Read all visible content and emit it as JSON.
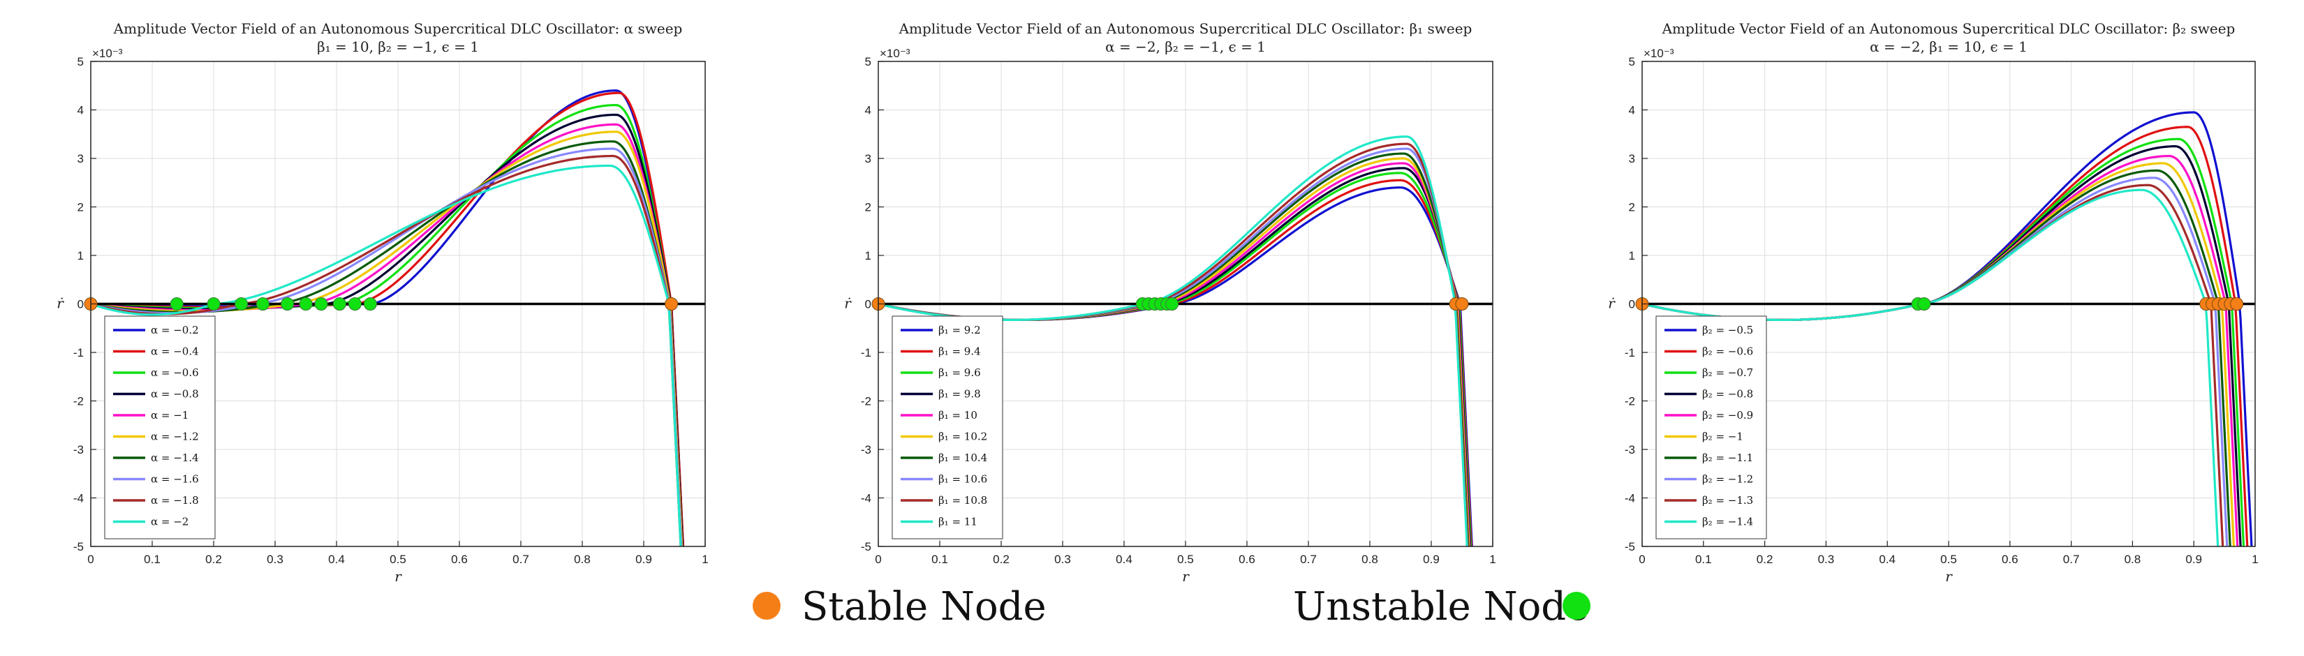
{
  "chart_data": [
    {
      "type": "line",
      "title": "Amplitude Vector Field of an Autonomous Supercritical DLC Oscillator: α sweep",
      "subtitle": "β₁ = 10, β₂ = −1, ϵ = 1",
      "xlabel": "r",
      "ylabel": "ṙ",
      "y_exponent_label": "×10⁻³",
      "xlim": [
        0,
        1
      ],
      "ylim": [
        -5,
        5
      ],
      "xticks": [
        0,
        0.1,
        0.2,
        0.3,
        0.4,
        0.5,
        0.6,
        0.7,
        0.8,
        0.9,
        1
      ],
      "yticks": [
        -5,
        -4,
        -3,
        -2,
        -1,
        0,
        1,
        2,
        3,
        4,
        5
      ],
      "grid": true,
      "legend_position": "bottom-left",
      "series": [
        {
          "name": "α = −0.2",
          "color": "#1010d0",
          "neg_dip": 0.05,
          "unstable_r": 0.455,
          "peak_r": 0.855,
          "peak_y": 4.4,
          "stable_r": 0.945
        },
        {
          "name": "α = −0.4",
          "color": "#e01010",
          "neg_dip": 0.07,
          "unstable_r": 0.43,
          "peak_r": 0.86,
          "peak_y": 4.35,
          "stable_r": 0.945
        },
        {
          "name": "α = −0.6",
          "color": "#10e010",
          "neg_dip": 0.09,
          "unstable_r": 0.405,
          "peak_r": 0.855,
          "peak_y": 4.1,
          "stable_r": 0.944
        },
        {
          "name": "α = −0.8",
          "color": "#000033",
          "neg_dip": 0.11,
          "unstable_r": 0.38,
          "peak_r": 0.855,
          "peak_y": 3.9,
          "stable_r": 0.944
        },
        {
          "name": "α = −1",
          "color": "#ff10c8",
          "neg_dip": 0.13,
          "unstable_r": 0.355,
          "peak_r": 0.855,
          "peak_y": 3.7,
          "stable_r": 0.943
        },
        {
          "name": "α = −1.2",
          "color": "#f0c800",
          "neg_dip": 0.15,
          "unstable_r": 0.33,
          "peak_r": 0.855,
          "peak_y": 3.55,
          "stable_r": 0.943
        },
        {
          "name": "α = −1.4",
          "color": "#0a5a0a",
          "neg_dip": 0.17,
          "unstable_r": 0.3,
          "peak_r": 0.85,
          "peak_y": 3.35,
          "stable_r": 0.942
        },
        {
          "name": "α = −1.6",
          "color": "#8888ff",
          "neg_dip": 0.19,
          "unstable_r": 0.265,
          "peak_r": 0.85,
          "peak_y": 3.2,
          "stable_r": 0.942
        },
        {
          "name": "α = −1.8",
          "color": "#a52a2a",
          "neg_dip": 0.21,
          "unstable_r": 0.24,
          "peak_r": 0.85,
          "peak_y": 3.05,
          "stable_r": 0.941
        },
        {
          "name": "α = −2",
          "color": "#20e8c8",
          "neg_dip": 0.22,
          "unstable_r": 0.2,
          "peak_r": 0.845,
          "peak_y": 2.85,
          "stable_r": 0.941
        }
      ],
      "unstable_nodes_r": [
        0.14,
        0.2,
        0.245,
        0.28,
        0.32,
        0.35,
        0.375,
        0.405,
        0.43,
        0.455
      ],
      "stable_nodes_r": [
        0,
        0.945
      ]
    },
    {
      "type": "line",
      "title": "Amplitude Vector Field of an Autonomous Supercritical DLC Oscillator: β₁ sweep",
      "subtitle": "α = −2, β₂ = −1, ϵ = 1",
      "xlabel": "r",
      "ylabel": "ṙ",
      "y_exponent_label": "×10⁻³",
      "xlim": [
        0,
        1
      ],
      "ylim": [
        -5,
        5
      ],
      "xticks": [
        0,
        0.1,
        0.2,
        0.3,
        0.4,
        0.5,
        0.6,
        0.7,
        0.8,
        0.9,
        1
      ],
      "yticks": [
        -5,
        -4,
        -3,
        -2,
        -1,
        0,
        1,
        2,
        3,
        4,
        5
      ],
      "grid": true,
      "legend_position": "bottom-left",
      "series": [
        {
          "name": "β₁ = 9.2",
          "color": "#1010d0",
          "neg_dip": 0.33,
          "unstable_r": 0.478,
          "peak_r": 0.85,
          "peak_y": 2.4,
          "stable_r": 0.947
        },
        {
          "name": "β₁ = 9.4",
          "color": "#e01010",
          "neg_dip": 0.33,
          "unstable_r": 0.472,
          "peak_r": 0.85,
          "peak_y": 2.55,
          "stable_r": 0.946
        },
        {
          "name": "β₁ = 9.6",
          "color": "#10e010",
          "neg_dip": 0.33,
          "unstable_r": 0.466,
          "peak_r": 0.85,
          "peak_y": 2.7,
          "stable_r": 0.945
        },
        {
          "name": "β₁ = 9.8",
          "color": "#000033",
          "neg_dip": 0.33,
          "unstable_r": 0.46,
          "peak_r": 0.855,
          "peak_y": 2.8,
          "stable_r": 0.944
        },
        {
          "name": "β₁ = 10",
          "color": "#ff10c8",
          "neg_dip": 0.33,
          "unstable_r": 0.455,
          "peak_r": 0.855,
          "peak_y": 2.9,
          "stable_r": 0.943
        },
        {
          "name": "β₁ = 10.2",
          "color": "#f0c800",
          "neg_dip": 0.33,
          "unstable_r": 0.45,
          "peak_r": 0.855,
          "peak_y": 3.0,
          "stable_r": 0.942
        },
        {
          "name": "β₁ = 10.4",
          "color": "#0a5a0a",
          "neg_dip": 0.33,
          "unstable_r": 0.445,
          "peak_r": 0.855,
          "peak_y": 3.1,
          "stable_r": 0.941
        },
        {
          "name": "β₁ = 10.6",
          "color": "#8888ff",
          "neg_dip": 0.33,
          "unstable_r": 0.44,
          "peak_r": 0.86,
          "peak_y": 3.2,
          "stable_r": 0.94
        },
        {
          "name": "β₁ = 10.8",
          "color": "#a52a2a",
          "neg_dip": 0.33,
          "unstable_r": 0.435,
          "peak_r": 0.86,
          "peak_y": 3.3,
          "stable_r": 0.94
        },
        {
          "name": "β₁ = 11",
          "color": "#20e8c8",
          "neg_dip": 0.33,
          "unstable_r": 0.43,
          "peak_r": 0.86,
          "peak_y": 3.45,
          "stable_r": 0.939
        }
      ],
      "unstable_nodes_r": [
        0.43,
        0.44,
        0.45,
        0.46,
        0.47,
        0.478
      ],
      "stable_nodes_r": [
        0,
        0.94,
        0.95
      ]
    },
    {
      "type": "line",
      "title": "Amplitude Vector Field of an Autonomous Supercritical DLC Oscillator: β₂ sweep",
      "subtitle": "α = −2, β₁ = 10, ϵ = 1",
      "xlabel": "r",
      "ylabel": "ṙ",
      "y_exponent_label": "×10⁻³",
      "xlim": [
        0,
        1
      ],
      "ylim": [
        -5,
        5
      ],
      "xticks": [
        0,
        0.1,
        0.2,
        0.3,
        0.4,
        0.5,
        0.6,
        0.7,
        0.8,
        0.9,
        1
      ],
      "yticks": [
        -5,
        -4,
        -3,
        -2,
        -1,
        0,
        1,
        2,
        3,
        4,
        5
      ],
      "grid": true,
      "legend_position": "bottom-left",
      "series": [
        {
          "name": "β₂ = −0.5",
          "color": "#1010d0",
          "neg_dip": 0.33,
          "unstable_r": 0.455,
          "peak_r": 0.9,
          "peak_y": 3.95,
          "stable_r": 0.975
        },
        {
          "name": "β₂ = −0.6",
          "color": "#e01010",
          "neg_dip": 0.33,
          "unstable_r": 0.455,
          "peak_r": 0.89,
          "peak_y": 3.65,
          "stable_r": 0.968
        },
        {
          "name": "β₂ = −0.7",
          "color": "#10e010",
          "neg_dip": 0.33,
          "unstable_r": 0.455,
          "peak_r": 0.875,
          "peak_y": 3.4,
          "stable_r": 0.962
        },
        {
          "name": "β₂ = −0.8",
          "color": "#000033",
          "neg_dip": 0.33,
          "unstable_r": 0.455,
          "peak_r": 0.87,
          "peak_y": 3.25,
          "stable_r": 0.957
        },
        {
          "name": "β₂ = −0.9",
          "color": "#ff10c8",
          "neg_dip": 0.33,
          "unstable_r": 0.455,
          "peak_r": 0.86,
          "peak_y": 3.05,
          "stable_r": 0.952
        },
        {
          "name": "β₂ = −1",
          "color": "#f0c800",
          "neg_dip": 0.33,
          "unstable_r": 0.455,
          "peak_r": 0.85,
          "peak_y": 2.9,
          "stable_r": 0.946
        },
        {
          "name": "β₂ = −1.1",
          "color": "#0a5a0a",
          "neg_dip": 0.33,
          "unstable_r": 0.455,
          "peak_r": 0.84,
          "peak_y": 2.75,
          "stable_r": 0.94
        },
        {
          "name": "β₂ = −1.2",
          "color": "#8888ff",
          "neg_dip": 0.33,
          "unstable_r": 0.455,
          "peak_r": 0.835,
          "peak_y": 2.6,
          "stable_r": 0.935
        },
        {
          "name": "β₂ = −1.3",
          "color": "#a52a2a",
          "neg_dip": 0.33,
          "unstable_r": 0.455,
          "peak_r": 0.825,
          "peak_y": 2.45,
          "stable_r": 0.928
        },
        {
          "name": "β₂ = −1.4",
          "color": "#20e8c8",
          "neg_dip": 0.33,
          "unstable_r": 0.455,
          "peak_r": 0.815,
          "peak_y": 2.35,
          "stable_r": 0.92
        }
      ],
      "unstable_nodes_r": [
        0.45,
        0.46
      ],
      "stable_nodes_r": [
        0,
        0.92,
        0.93,
        0.94,
        0.95,
        0.96,
        0.97
      ]
    }
  ],
  "legend": {
    "stable_label": "Stable Node",
    "unstable_label": "Unstable Node",
    "stable_color": "#f57f17",
    "unstable_color": "#11e011"
  },
  "colors": {
    "zero_line": "#000000",
    "grid": "#dcdcdc",
    "axes": "#222222"
  }
}
